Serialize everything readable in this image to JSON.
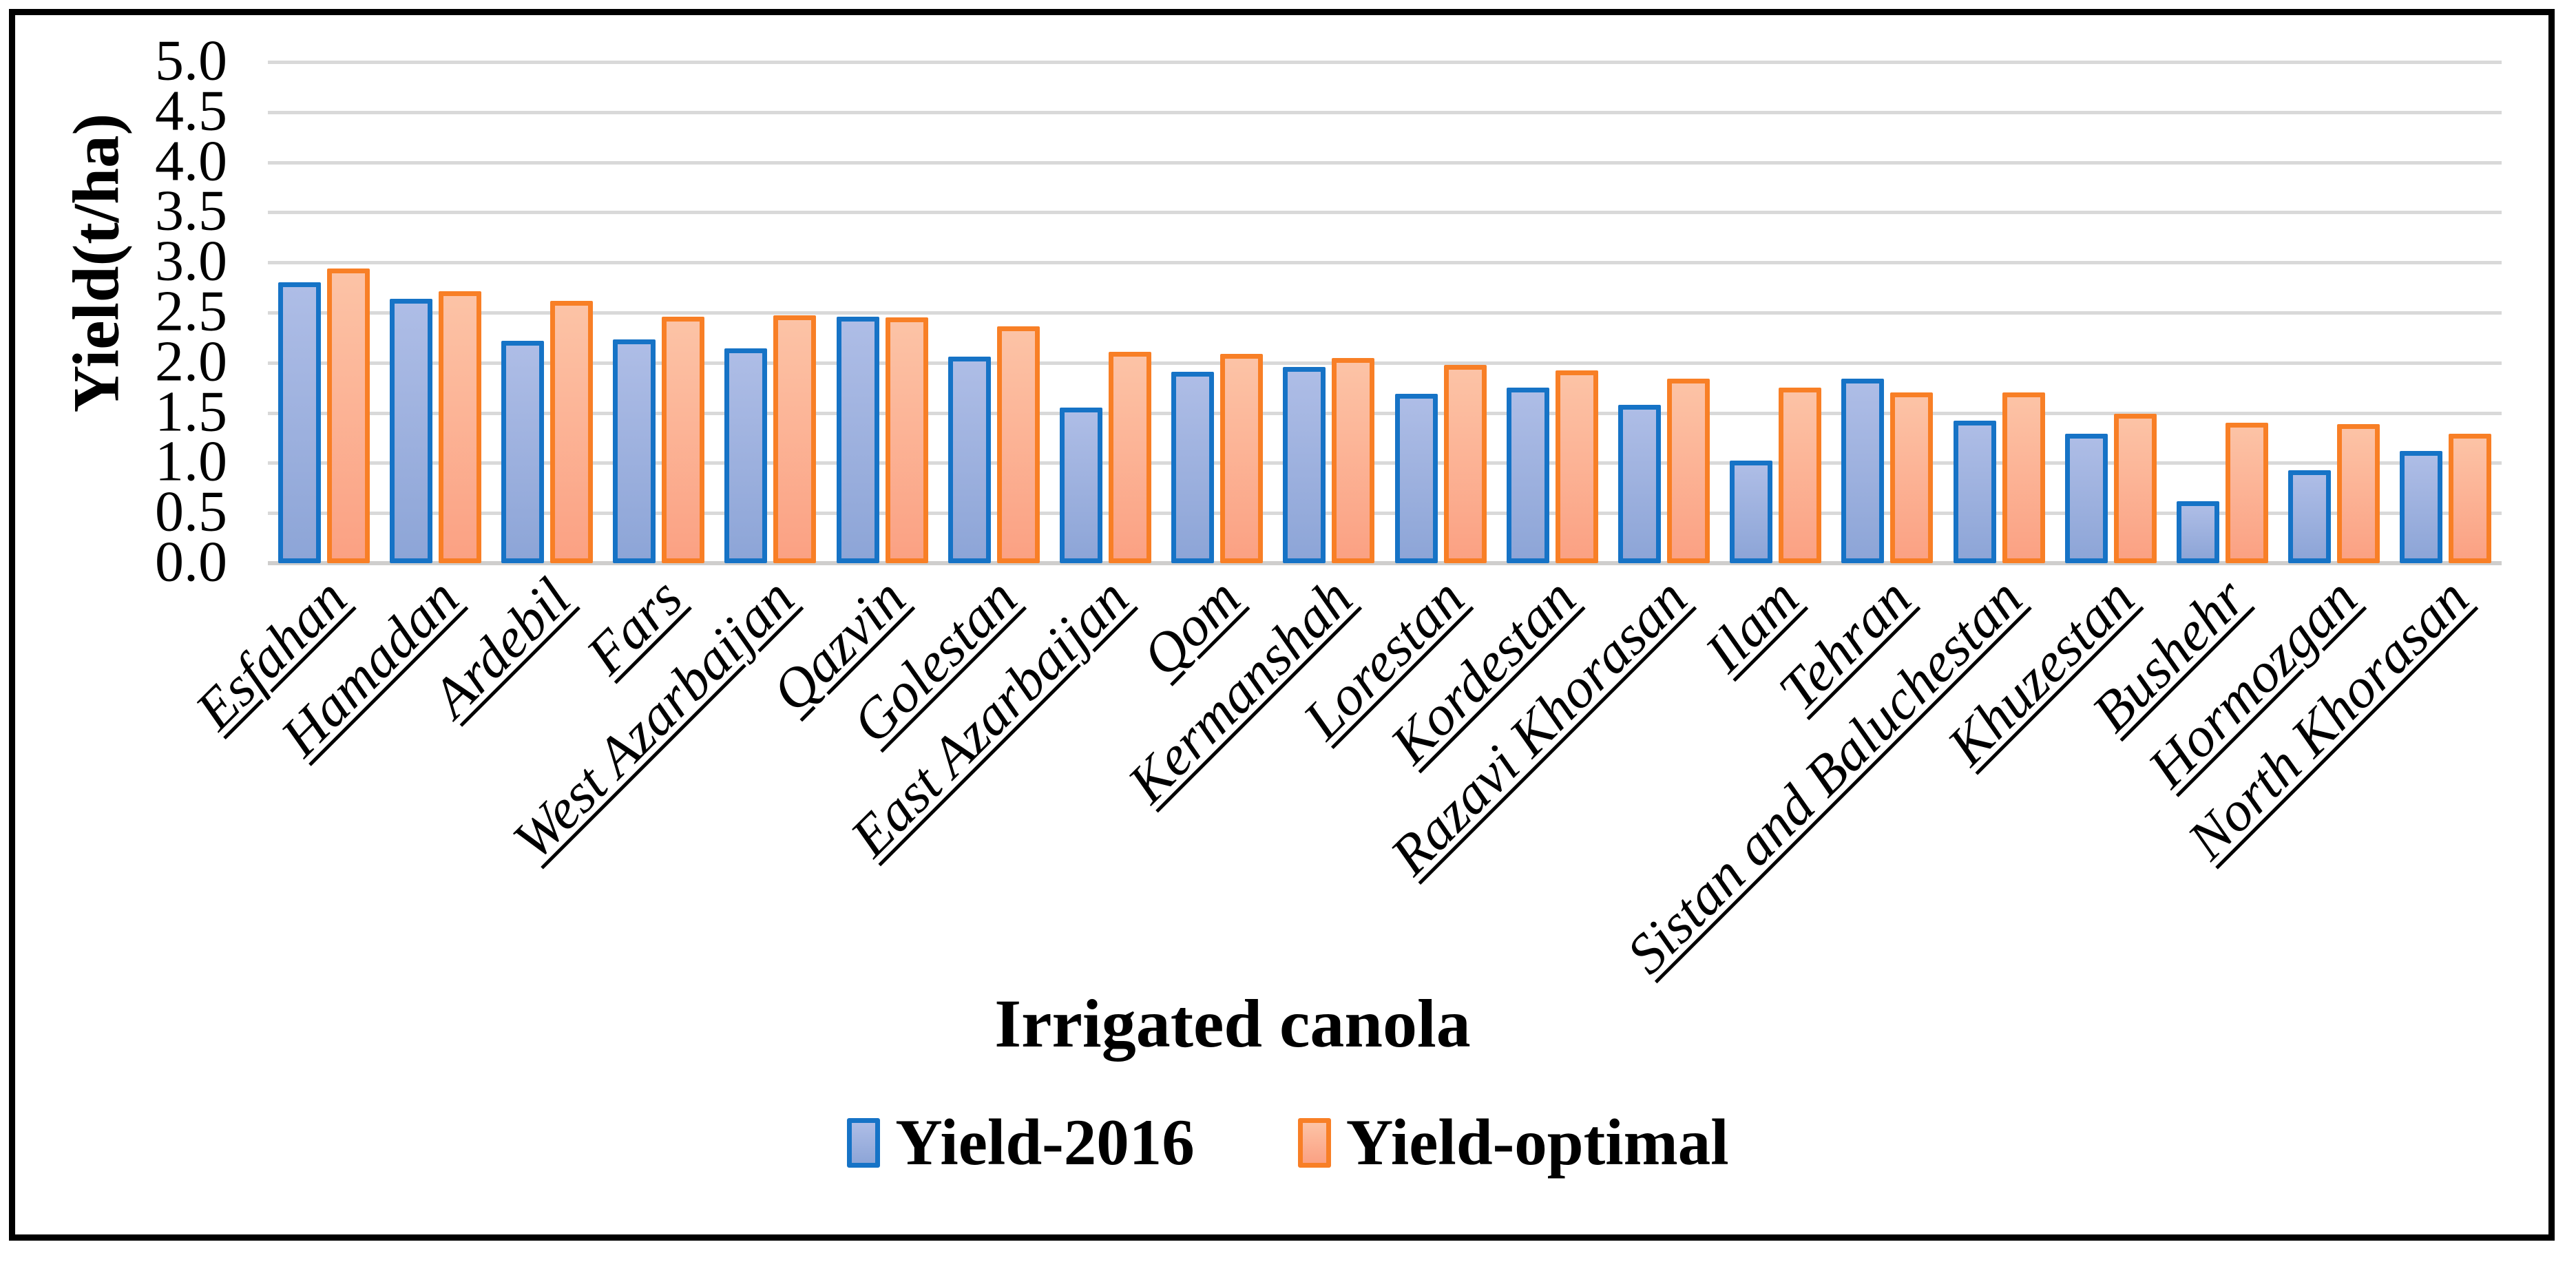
{
  "figure": {
    "x_axis_title": "Irrigated canola",
    "y_axis_title": "Yield(t/ha)"
  },
  "chart_data": {
    "type": "bar",
    "title": "",
    "xlabel": "Irrigated canola",
    "ylabel": "Yield(t/ha)",
    "categories": [
      "Esfahan",
      "Hamadan",
      "Ardebil",
      "Fars",
      "West Azarbaijan",
      "Qazvin",
      "Golestan",
      "East Azarbaijan",
      "Qom",
      "Kermanshah",
      "Lorestan",
      "Kordestan",
      "Razavi Khorasan",
      "Ilam",
      "Tehran",
      "Sistan and Baluchestan",
      "Khuzestan",
      "Bushehr",
      "Hormozgan",
      "North Khorasan"
    ],
    "series": [
      {
        "name": "Yield-2016",
        "values": [
          2.8,
          2.64,
          2.22,
          2.23,
          2.14,
          2.46,
          2.06,
          1.55,
          1.91,
          1.96,
          1.69,
          1.75,
          1.58,
          1.02,
          1.84,
          1.42,
          1.29,
          0.62,
          0.93,
          1.12
        ],
        "border_color": "#1673c6",
        "fill_top": "#aebde6",
        "fill_bottom": "#8da5d7"
      },
      {
        "name": "Yield-optimal",
        "values": [
          2.94,
          2.71,
          2.62,
          2.46,
          2.47,
          2.45,
          2.36,
          2.11,
          2.09,
          2.05,
          1.98,
          1.92,
          1.84,
          1.75,
          1.7,
          1.7,
          1.49,
          1.4,
          1.39,
          1.29
        ],
        "border_color": "#f87f26",
        "fill_top": "#fcc3a6",
        "fill_bottom": "#fba183"
      }
    ],
    "ylim": [
      0.0,
      5.0
    ],
    "ytick_step": 0.5,
    "ytick_labels": [
      "0.0",
      "0.5",
      "1.0",
      "1.5",
      "2.0",
      "2.5",
      "3.0",
      "3.5",
      "4.0",
      "4.5",
      "5.0"
    ],
    "grid": "horizontal",
    "gridline_color": "#d9d9d9",
    "legend_position": "bottom",
    "x_labels_rotation_deg": -45,
    "x_labels_style": "italic underlined"
  }
}
